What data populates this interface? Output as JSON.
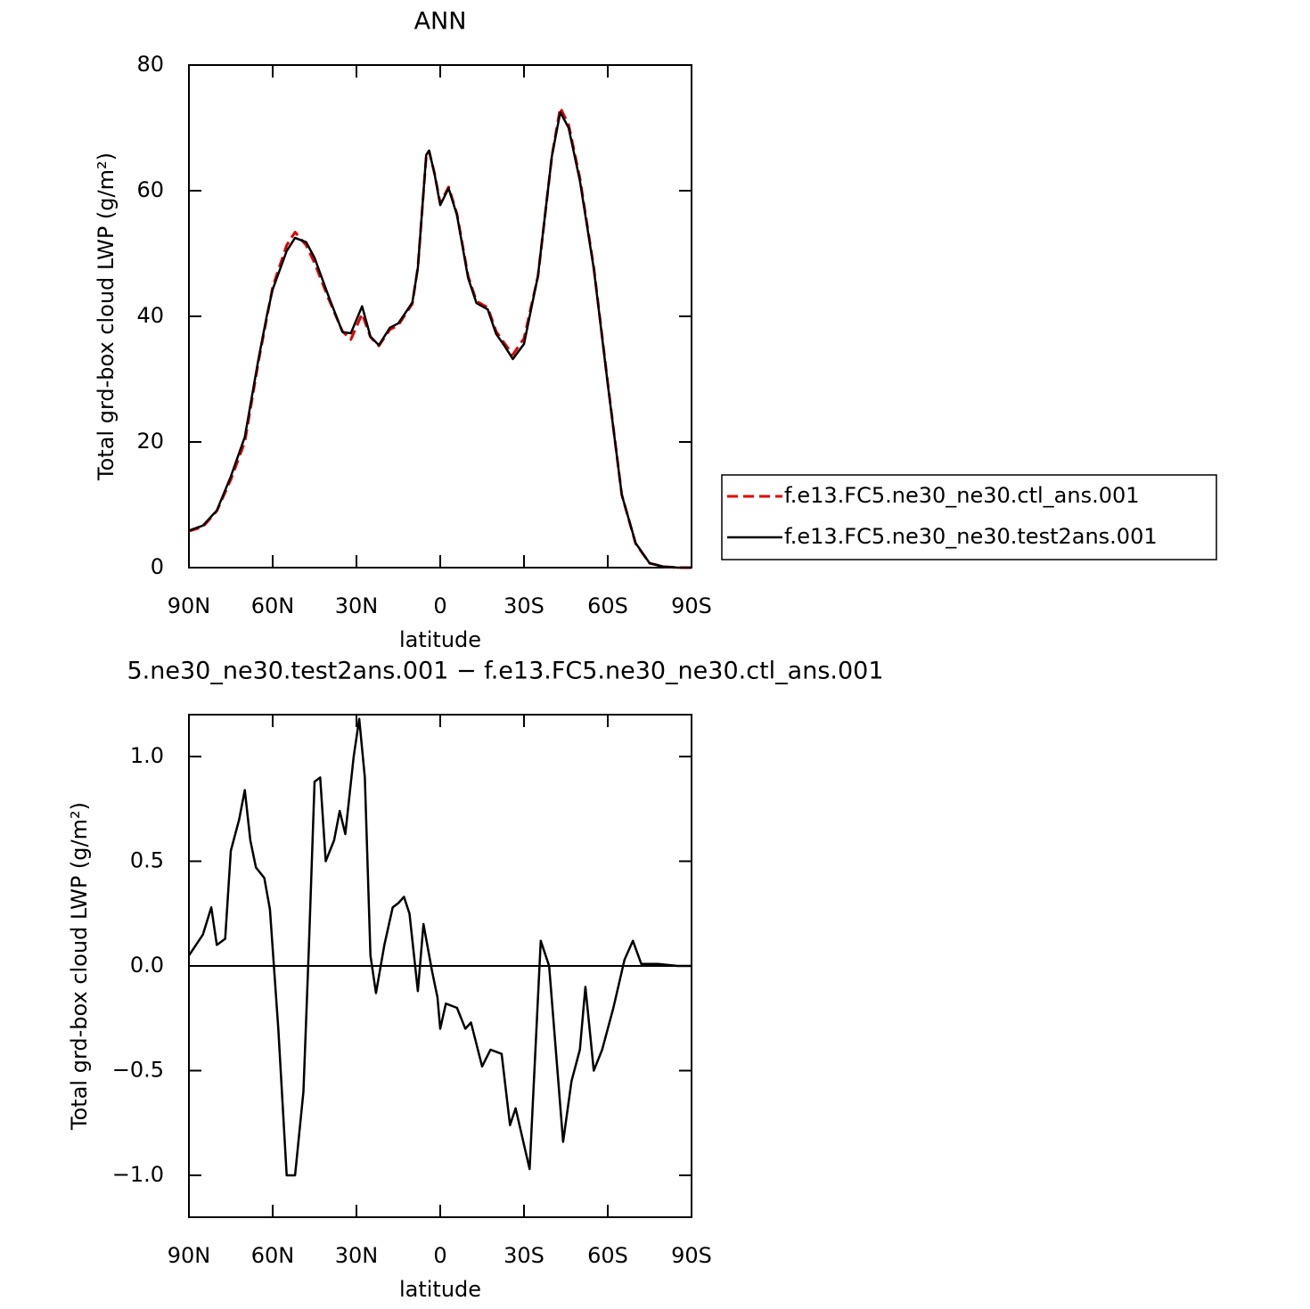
{
  "chart_data": [
    {
      "type": "line",
      "title": "ANN",
      "xlabel": "latitude",
      "ylabel": "Total grd-box cloud LWP (g/m²)",
      "xlim": [
        90,
        -90
      ],
      "ylim": [
        0,
        80
      ],
      "xticks": [
        {
          "value": 90,
          "label": "90N"
        },
        {
          "value": 60,
          "label": "60N"
        },
        {
          "value": 30,
          "label": "30N"
        },
        0,
        {
          "value": -30,
          "label": "30S"
        },
        {
          "value": -60,
          "label": "60S"
        },
        {
          "value": -90,
          "label": "90S"
        }
      ],
      "yticks": [
        0,
        20,
        40,
        60,
        80
      ],
      "legend": "right",
      "x": [
        90,
        85,
        80,
        75,
        70,
        65,
        62,
        60,
        55,
        52,
        48,
        45,
        40,
        35,
        32,
        28,
        25,
        22,
        18,
        15,
        10,
        8,
        5,
        4,
        2,
        0,
        -3,
        -6,
        -10,
        -13,
        -17,
        -20,
        -23,
        -26,
        -30,
        -35,
        -40,
        -43,
        -46,
        -50,
        -55,
        -60,
        -65,
        -70,
        -75,
        -80,
        -85,
        -90
      ],
      "series": [
        {
          "name": "f.e13.FC5.ne30_ne30.ctl_ans.001",
          "color": "#e00000",
          "style": "dashed",
          "values": [
            5.8,
            6.5,
            9,
            14,
            20,
            33,
            40,
            44.7,
            51.3,
            53.4,
            51.3,
            48.5,
            42.8,
            37.6,
            36.3,
            40.4,
            36.7,
            35.3,
            37.9,
            38.6,
            42,
            47.8,
            65.5,
            66.3,
            62.7,
            58,
            60.6,
            56.3,
            46.4,
            42.4,
            41.4,
            37.6,
            35.7,
            33.9,
            36.5,
            46.4,
            65.5,
            73.2,
            70.5,
            62,
            47.8,
            29.4,
            11.6,
            3.8,
            0.7,
            0.15,
            0,
            0
          ]
        },
        {
          "name": "f.e13.FC5.ne30_ne30.test2ans.001",
          "color": "#000000",
          "style": "solid",
          "values": [
            5.9,
            6.7,
            9.1,
            14.5,
            20.8,
            33.4,
            40.3,
            44.3,
            50.4,
            52.5,
            51.8,
            49.3,
            43.2,
            37.5,
            37.3,
            41.6,
            36.8,
            35.4,
            38.2,
            38.9,
            42.2,
            47.7,
            65.7,
            66.4,
            62.6,
            57.7,
            60.4,
            56.1,
            46.1,
            42.1,
            41.1,
            37.2,
            35.3,
            33.2,
            35.6,
            46.5,
            65.5,
            72.5,
            70,
            61.6,
            47.6,
            29.2,
            11.6,
            3.9,
            0.7,
            0.15,
            0,
            0
          ]
        }
      ]
    },
    {
      "type": "line",
      "title": "5.ne30_ne30.test2ans.001 − f.e13.FC5.ne30_ne30.ctl_ans.001",
      "xlabel": "latitude",
      "ylabel": "Total grd-box cloud LWP (g/m²)",
      "xlim": [
        90,
        -90
      ],
      "ylim": [
        -1.2,
        1.2
      ],
      "xticks": [
        {
          "value": 90,
          "label": "90N"
        },
        {
          "value": 60,
          "label": "60N"
        },
        {
          "value": 30,
          "label": "30N"
        },
        0,
        {
          "value": -30,
          "label": "30S"
        },
        {
          "value": -60,
          "label": "60S"
        },
        {
          "value": -90,
          "label": "90S"
        }
      ],
      "yticks": [
        {
          "value": -1,
          "label": "−1.0"
        },
        {
          "value": -0.5,
          "label": "−0.5"
        },
        {
          "value": 0,
          "label": "0.0"
        },
        0.5,
        {
          "value": 1,
          "label": "1.0"
        }
      ],
      "zero_line": true,
      "x": [
        90,
        85,
        82,
        80,
        77,
        75,
        72,
        70,
        68,
        66,
        63,
        61,
        58,
        55,
        52,
        49,
        47,
        45,
        43,
        41,
        38,
        36,
        34,
        31,
        29,
        27,
        25,
        23,
        20,
        17,
        15,
        13,
        11,
        8,
        6,
        3,
        1,
        0,
        -2,
        -6,
        -9,
        -11,
        -15,
        -18,
        -22,
        -25,
        -27,
        -32,
        -36,
        -39,
        -44,
        -47,
        -50,
        -52,
        -55,
        -58,
        -62,
        -66,
        -69,
        -72,
        -78,
        -85,
        -90
      ],
      "series": [
        {
          "color": "#000000",
          "style": "solid",
          "values": [
            0.05,
            0.15,
            0.28,
            0.1,
            0.13,
            0.55,
            0.7,
            0.84,
            0.6,
            0.47,
            0.42,
            0.27,
            -0.3,
            -1.0,
            -1.0,
            -0.6,
            0.1,
            0.88,
            0.9,
            0.5,
            0.6,
            0.74,
            0.63,
            1.0,
            1.18,
            0.9,
            0.05,
            -0.13,
            0.1,
            0.28,
            0.3,
            0.33,
            0.25,
            -0.12,
            0.2,
            -0.02,
            -0.15,
            -0.3,
            -0.18,
            -0.2,
            -0.3,
            -0.27,
            -0.48,
            -0.4,
            -0.42,
            -0.76,
            -0.68,
            -0.97,
            0.12,
            0.0,
            -0.84,
            -0.55,
            -0.4,
            -0.1,
            -0.5,
            -0.4,
            -0.2,
            0.03,
            0.12,
            0.01,
            0.01,
            0.0,
            0.0
          ]
        }
      ]
    }
  ]
}
